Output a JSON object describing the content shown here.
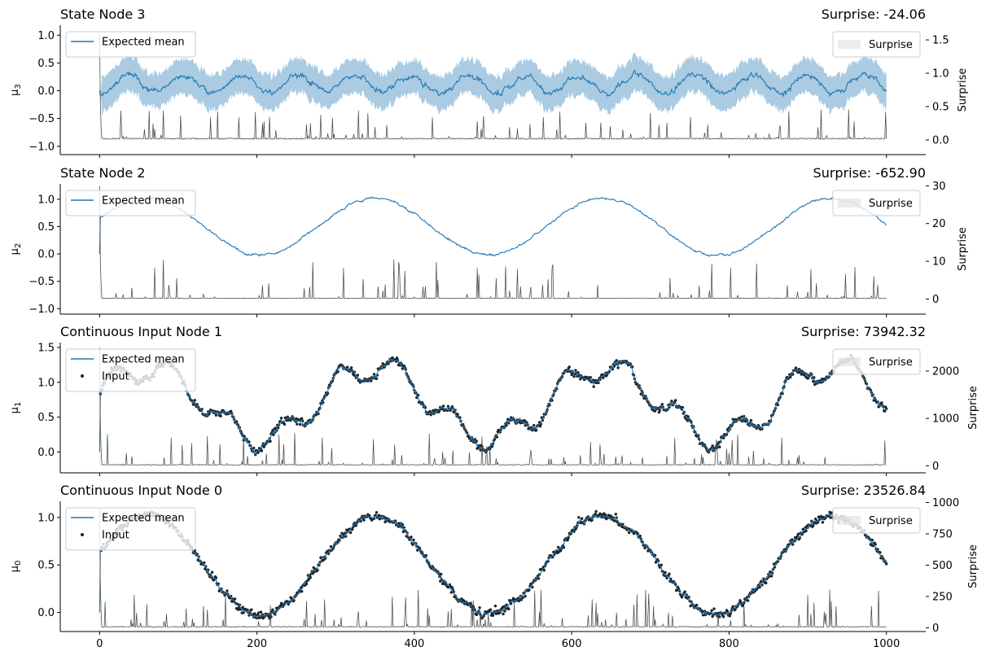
{
  "chart_data": [
    {
      "type": "line",
      "title": "State Node 3",
      "surprise_label": "Surprise: -24.06",
      "ylabel": "μ3",
      "ylabel_right": "Surprise",
      "xlim": [
        -50,
        1050
      ],
      "ylim": [
        -1.15,
        1.18
      ],
      "yticks": [
        -1.0,
        -0.5,
        0.0,
        0.5,
        1.0
      ],
      "ytick_labels": [
        "−1.0",
        "−0.5",
        "0.0",
        "0.5",
        "1.0"
      ],
      "y2lim": [
        -0.22,
        1.72
      ],
      "y2ticks": [
        0.0,
        0.5,
        1.0,
        1.5
      ],
      "y2tick_labels": [
        "0.0",
        "0.5",
        "1.0",
        "1.5"
      ],
      "legend_left": [
        "Expected mean"
      ],
      "legend_right": [
        "Surprise"
      ],
      "series": [
        {
          "name": "Expected mean",
          "pattern": "sinusoid",
          "center": 0.12,
          "amplitude": 0.15,
          "period": 72,
          "noise": 0.06,
          "band": 0.3,
          "color": "#1f77b4"
        },
        {
          "name": "Surprise",
          "pattern": "spikes",
          "base": 0.02,
          "spike_max": 0.5,
          "initial": 1.6,
          "color": "#444444"
        }
      ]
    },
    {
      "type": "line",
      "title": "State Node 2",
      "surprise_label": "Surprise: -652.90",
      "ylabel": "μ2",
      "ylabel_right": "Surprise",
      "xlim": [
        -50,
        1050
      ],
      "ylim": [
        -1.1,
        1.28
      ],
      "yticks": [
        -1.0,
        -0.5,
        0.0,
        0.5,
        1.0
      ],
      "ytick_labels": [
        "−1.0",
        "−0.5",
        "0.0",
        "0.5",
        "1.0"
      ],
      "y2lim": [
        -4,
        30.5
      ],
      "y2ticks": [
        0,
        10,
        20,
        30
      ],
      "y2tick_labels": [
        "0",
        "10",
        "20",
        "30"
      ],
      "legend_left": [
        "Expected mean"
      ],
      "legend_right": [
        "Surprise"
      ],
      "series": [
        {
          "name": "Expected mean",
          "pattern": "sinusoid",
          "center": 0.5,
          "amplitude": 0.52,
          "period": 290,
          "phase_peak": 60,
          "noise": 0.025,
          "band": 0.0,
          "color": "#1f77b4"
        },
        {
          "name": "Surprise",
          "pattern": "spikes",
          "base": 0.2,
          "spike_max": 11,
          "initial": 30,
          "color": "#444444"
        }
      ]
    },
    {
      "type": "line",
      "title": "Continuous Input Node 1",
      "surprise_label": "Surprise: 73942.32",
      "ylabel": "μ1",
      "ylabel_right": "Surprise",
      "xlim": [
        -50,
        1050
      ],
      "ylim": [
        -0.3,
        1.57
      ],
      "yticks": [
        0.0,
        0.5,
        1.0,
        1.5
      ],
      "ytick_labels": [
        "0.0",
        "0.5",
        "1.0",
        "1.5"
      ],
      "y2lim": [
        -150,
        2600
      ],
      "y2ticks": [
        0,
        1000,
        2000
      ],
      "y2tick_labels": [
        "0",
        "1000",
        "2000"
      ],
      "legend_left": [
        "Expected mean",
        "Input"
      ],
      "legend_right": [
        "Surprise"
      ],
      "series": [
        {
          "name": "Expected mean",
          "pattern": "compound",
          "center": 0.7,
          "amplitude": 0.5,
          "period": 290,
          "phase_peak": 60,
          "amp2": 0.18,
          "period2": 72,
          "noise": 0.05,
          "color": "#1f77b4"
        },
        {
          "name": "Input",
          "pattern": "points",
          "color": "#222222"
        },
        {
          "name": "Surprise",
          "pattern": "spikes",
          "base": 20,
          "spike_max": 700,
          "initial": 2500,
          "color": "#444444"
        }
      ]
    },
    {
      "type": "line",
      "title": "Continuous Input Node 0",
      "surprise_label": "Surprise: 23526.84",
      "ylabel": "μ0",
      "ylabel_right": "Surprise",
      "xlim": [
        -50,
        1050
      ],
      "ylim": [
        -0.2,
        1.17
      ],
      "yticks": [
        0.0,
        0.5,
        1.0
      ],
      "ytick_labels": [
        "0.0",
        "0.5",
        "1.0"
      ],
      "y2lim": [
        -30,
        1010
      ],
      "y2ticks": [
        0,
        250,
        500,
        750,
        1000
      ],
      "y2tick_labels": [
        "0",
        "250",
        "500",
        "750",
        "1000"
      ],
      "xticks": [
        0,
        200,
        400,
        600,
        800,
        1000
      ],
      "xtick_labels": [
        "0",
        "200",
        "400",
        "600",
        "800",
        "1000"
      ],
      "legend_left": [
        "Expected mean",
        "Input"
      ],
      "legend_right": [
        "Surprise"
      ],
      "series": [
        {
          "name": "Expected mean",
          "pattern": "sinusoid",
          "center": 0.5,
          "amplitude": 0.52,
          "period": 290,
          "phase_peak": 60,
          "noise": 0.03,
          "band": 0.0,
          "color": "#1f77b4"
        },
        {
          "name": "Input",
          "pattern": "points",
          "color": "#222222"
        },
        {
          "name": "Surprise",
          "pattern": "spikes",
          "base": 8,
          "spike_max": 320,
          "initial": 960,
          "color": "#444444"
        }
      ]
    }
  ]
}
